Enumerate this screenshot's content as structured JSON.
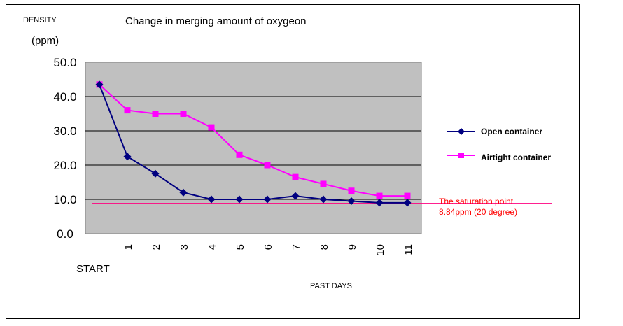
{
  "chart_data": {
    "type": "line",
    "title": "Change  in merging amount of oxygeon",
    "ylabel_line1": "DENSITY",
    "ylabel_line2": "(ppm)",
    "xlabel": "PAST  DAYS",
    "start_label": "START",
    "y_ticks": [
      "50.0",
      "40.0",
      "30.0",
      "20.0",
      "10.0",
      "0.0"
    ],
    "ylim": [
      0,
      50
    ],
    "grid": true,
    "x": [
      "START",
      "1",
      "2",
      "3",
      "4",
      "5",
      "6",
      "7",
      "8",
      "9",
      "10",
      "11"
    ],
    "series": [
      {
        "name": "Open container",
        "color": "#000080",
        "marker": "diamond",
        "values": [
          43.5,
          22.5,
          17.5,
          12.0,
          10.0,
          10.0,
          10.0,
          11.0,
          10.0,
          9.5,
          9.0,
          9.0
        ]
      },
      {
        "name": "Airtight container",
        "color": "#ff00ff",
        "marker": "square",
        "values": [
          43.5,
          36.0,
          35.0,
          35.0,
          31.0,
          23.0,
          20.0,
          16.5,
          14.5,
          12.5,
          11.0,
          11.0
        ]
      }
    ],
    "annotation": {
      "line1": "The  saturation point",
      "line2": "8.84ppm (20 degree)",
      "value": 8.84,
      "color": "#ff0000"
    },
    "legend_position": "right",
    "plot_background": "#c0c0c0"
  }
}
